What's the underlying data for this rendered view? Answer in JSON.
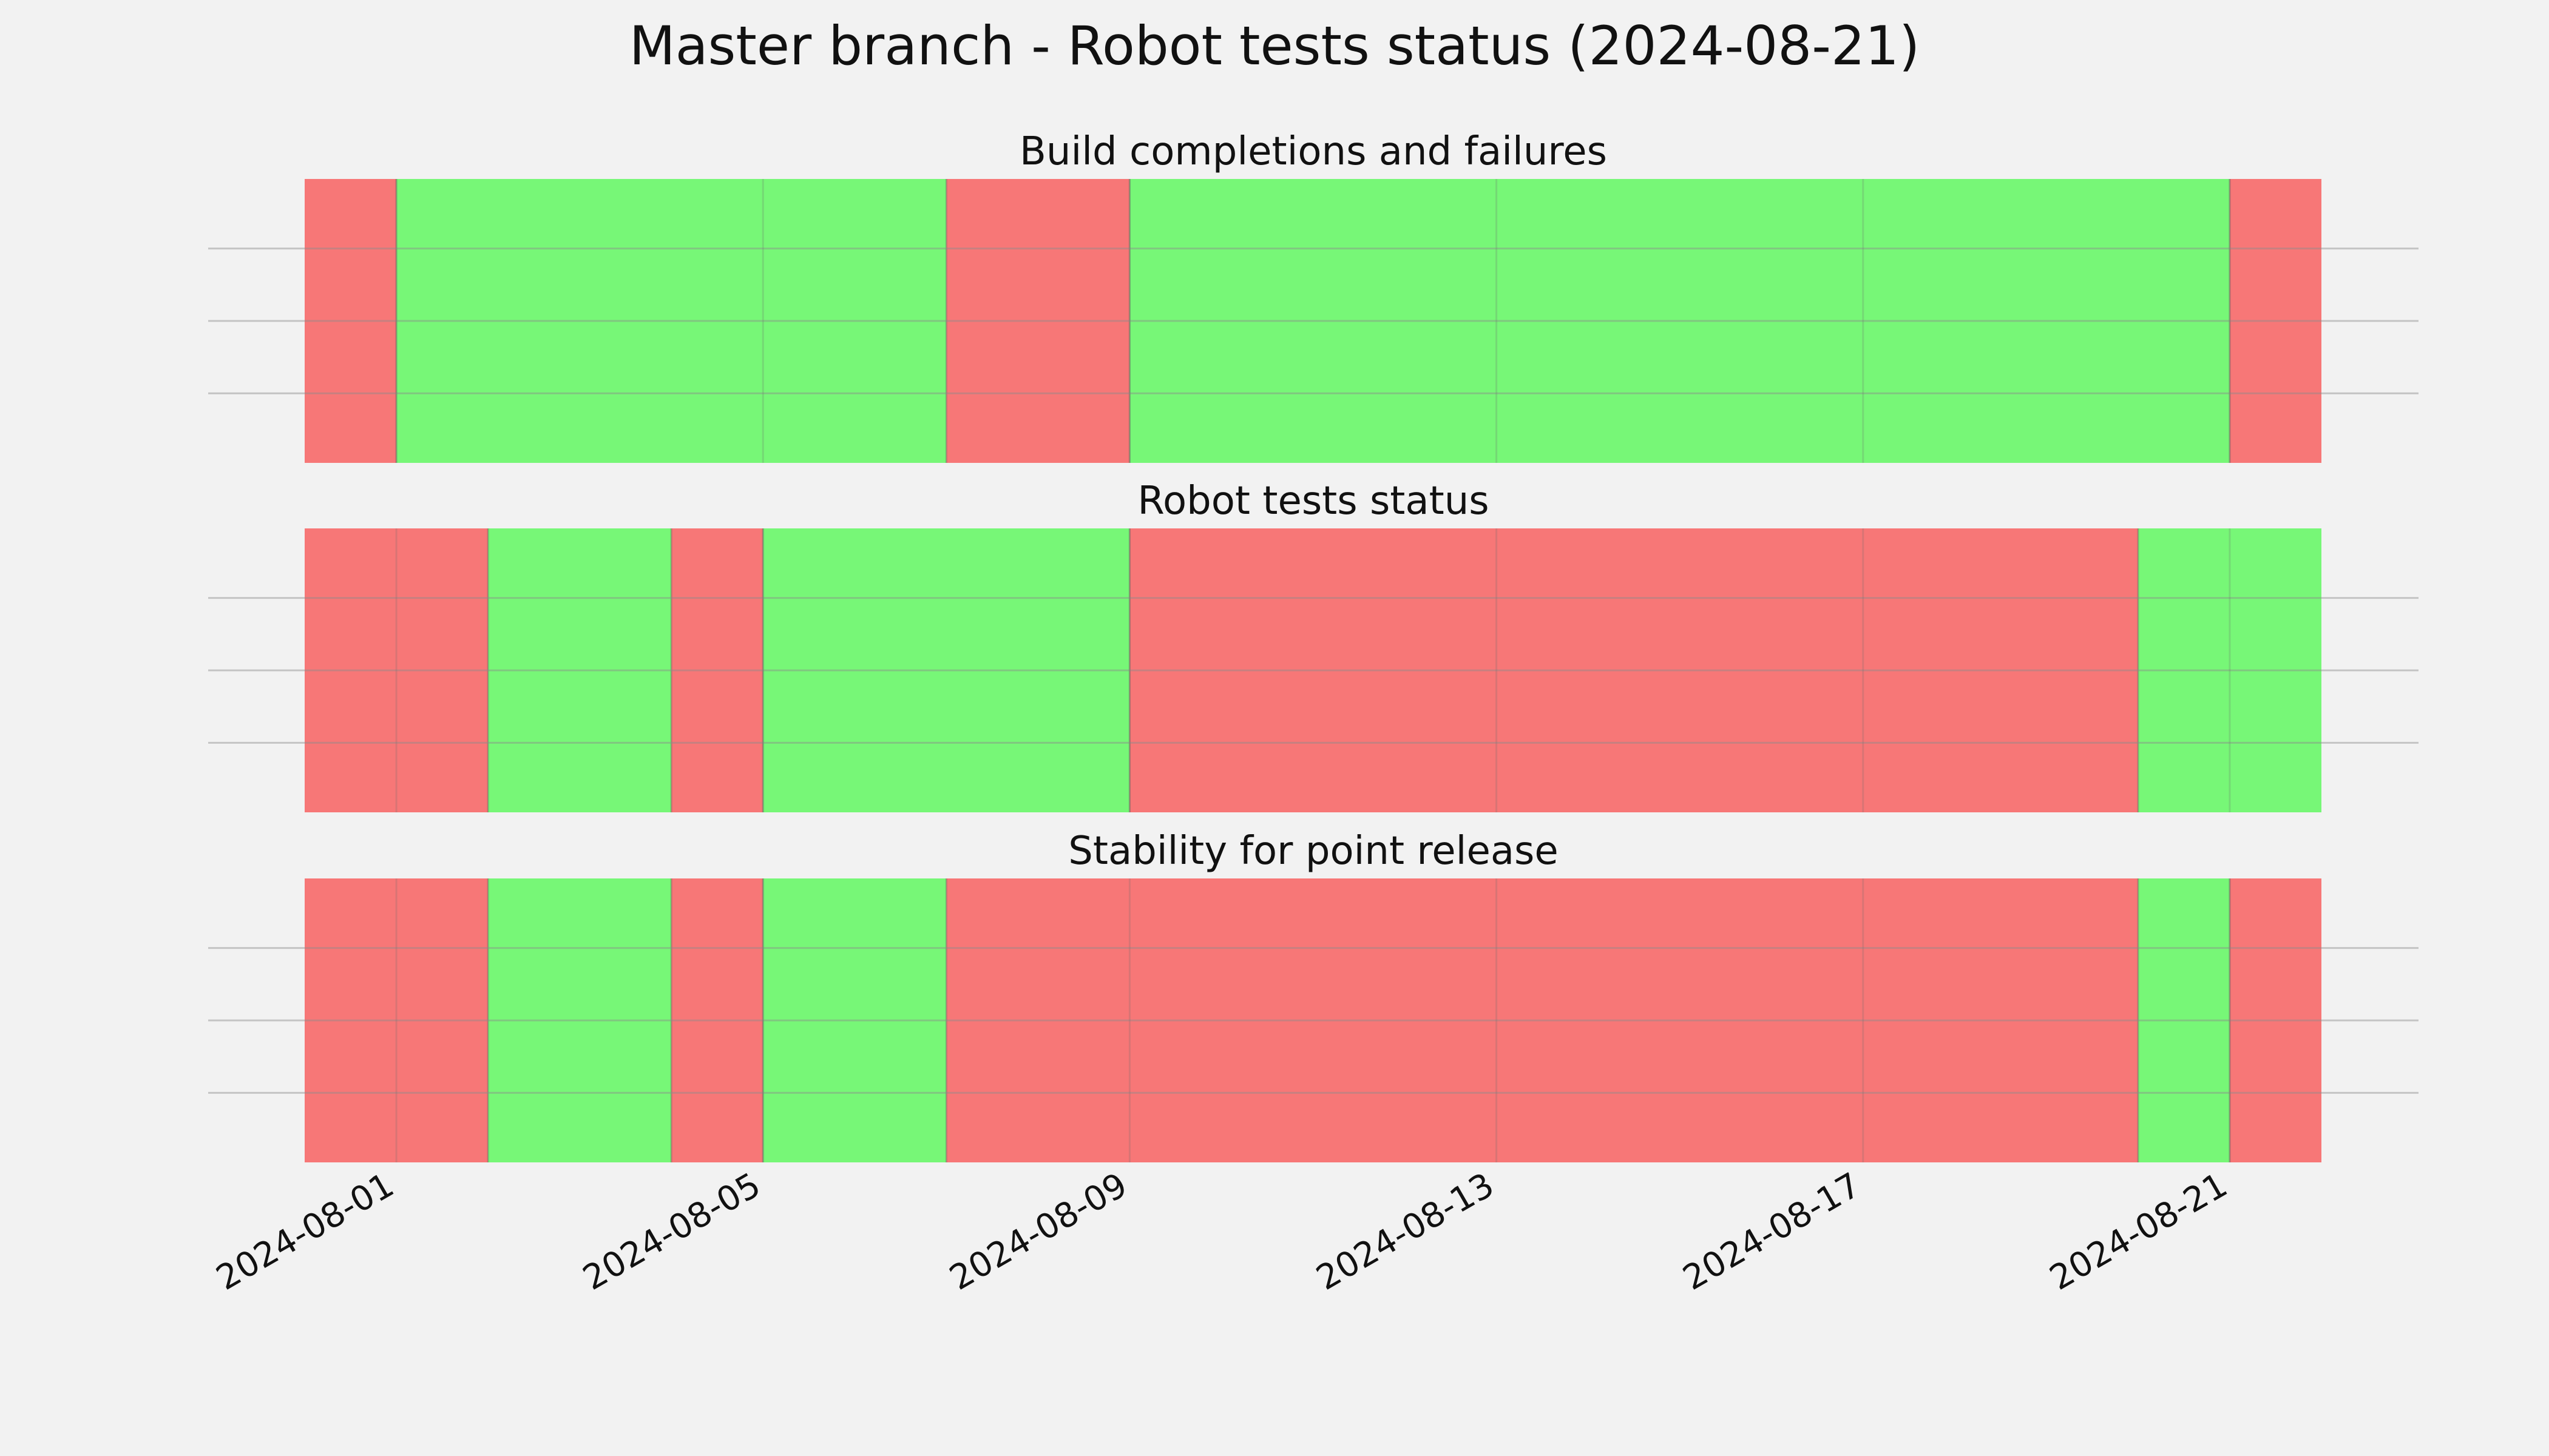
{
  "chart_data": {
    "type": "timeline",
    "title": "Master branch - Robot tests status (2024-08-21)",
    "x_ticks": [
      "2024-08-01",
      "2024-08-05",
      "2024-08-09",
      "2024-08-13",
      "2024-08-17",
      "2024-08-21"
    ],
    "xlim": [
      "2024-07-31T00:00",
      "2024-08-23T00:00"
    ],
    "grid": true,
    "colors": {
      "pass": "#77f777",
      "fail": "#f77777",
      "background": "#f2f2f2"
    },
    "panels": [
      {
        "title": "Build completions and failures",
        "segments": [
          {
            "start": "2024-07-31T00:00",
            "end": "2024-08-01T00:00",
            "status": "fail"
          },
          {
            "start": "2024-08-01T00:00",
            "end": "2024-08-07T00:00",
            "status": "pass"
          },
          {
            "start": "2024-08-07T00:00",
            "end": "2024-08-09T00:00",
            "status": "fail"
          },
          {
            "start": "2024-08-09T00:00",
            "end": "2024-08-21T00:00",
            "status": "pass"
          },
          {
            "start": "2024-08-21T00:00",
            "end": "2024-08-22T00:00",
            "status": "fail"
          }
        ]
      },
      {
        "title": "Robot tests status",
        "segments": [
          {
            "start": "2024-07-31T00:00",
            "end": "2024-08-02T00:00",
            "status": "fail"
          },
          {
            "start": "2024-08-02T00:00",
            "end": "2024-08-04T00:00",
            "status": "pass"
          },
          {
            "start": "2024-08-04T00:00",
            "end": "2024-08-05T00:00",
            "status": "fail"
          },
          {
            "start": "2024-08-05T00:00",
            "end": "2024-08-09T00:00",
            "status": "pass"
          },
          {
            "start": "2024-08-09T00:00",
            "end": "2024-08-20T00:00",
            "status": "fail"
          },
          {
            "start": "2024-08-20T00:00",
            "end": "2024-08-22T00:00",
            "status": "pass"
          }
        ]
      },
      {
        "title": "Stability for point release",
        "segments": [
          {
            "start": "2024-07-31T00:00",
            "end": "2024-08-02T00:00",
            "status": "fail"
          },
          {
            "start": "2024-08-02T00:00",
            "end": "2024-08-04T00:00",
            "status": "pass"
          },
          {
            "start": "2024-08-04T00:00",
            "end": "2024-08-05T00:00",
            "status": "fail"
          },
          {
            "start": "2024-08-05T00:00",
            "end": "2024-08-07T00:00",
            "status": "pass"
          },
          {
            "start": "2024-08-07T00:00",
            "end": "2024-08-20T00:00",
            "status": "fail"
          },
          {
            "start": "2024-08-20T00:00",
            "end": "2024-08-21T00:00",
            "status": "pass"
          },
          {
            "start": "2024-08-21T00:00",
            "end": "2024-08-22T00:00",
            "status": "fail"
          }
        ]
      }
    ]
  }
}
